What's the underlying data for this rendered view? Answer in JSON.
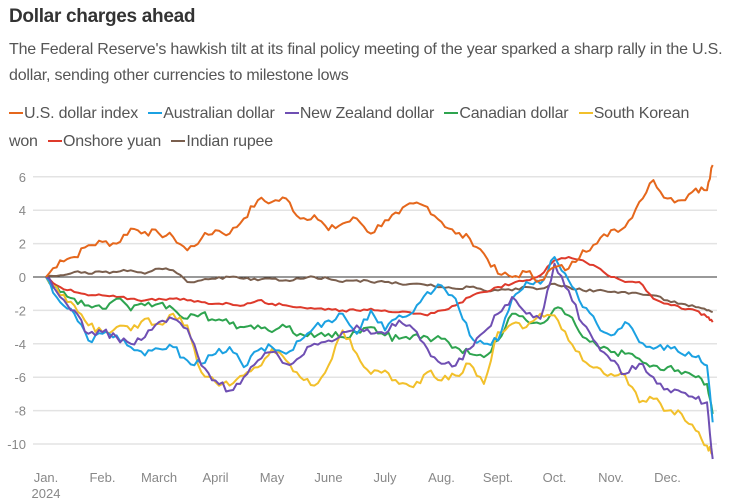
{
  "header": {
    "title": "Dollar charges ahead",
    "subtitle": "The Federal Reserve's hawkish tilt at its final policy meeting of the year sparked a sharp rally in the U.S. dollar, sending other currencies to milestone lows"
  },
  "chart_data": {
    "type": "line",
    "title": "Dollar charges ahead",
    "subtitle": "The Federal Reserve's hawkish tilt at its final policy meeting of the year sparked a sharp rally in the U.S. dollar, sending other currencies to milestone lows",
    "xlabel": "",
    "ylabel": "",
    "ylim": [
      -11,
      6.5
    ],
    "yticks": [
      6,
      4,
      2,
      0,
      -2,
      -4,
      -6,
      -8,
      -10
    ],
    "ytick_labels": [
      "6",
      "4",
      "2",
      "0",
      "-2",
      "-4",
      "-6",
      "-8",
      "-10"
    ],
    "xlim": [
      0,
      11.85
    ],
    "xticks": [
      0,
      1,
      2,
      3,
      4,
      5,
      6,
      7,
      8,
      9,
      10,
      11
    ],
    "xtick_labels": [
      "Jan.",
      "Feb.",
      "March",
      "April",
      "May",
      "June",
      "July",
      "Aug.",
      "Sept.",
      "Oct.",
      "Nov.",
      "Dec."
    ],
    "xtick_year": "2024",
    "grid": true,
    "legend_position": "top",
    "x": [
      0,
      0.25,
      0.5,
      0.75,
      1,
      1.25,
      1.5,
      1.75,
      2,
      2.25,
      2.5,
      2.75,
      3,
      3.25,
      3.5,
      3.75,
      4,
      4.25,
      4.5,
      4.75,
      5,
      5.25,
      5.5,
      5.75,
      6,
      6.25,
      6.5,
      6.75,
      7,
      7.25,
      7.5,
      7.75,
      8,
      8.25,
      8.5,
      8.75,
      9,
      9.25,
      9.5,
      9.75,
      10,
      10.25,
      10.5,
      10.75,
      11,
      11.25,
      11.5,
      11.7,
      11.8
    ],
    "series": [
      {
        "name": "U.S. dollar index",
        "color": "#e5671c",
        "values": [
          0,
          1.0,
          1.2,
          1.9,
          2.1,
          2.0,
          2.9,
          2.7,
          2.6,
          2.4,
          1.6,
          2.3,
          2.8,
          2.6,
          3.5,
          4.6,
          4.5,
          4.7,
          3.5,
          3.7,
          2.8,
          3.2,
          3.5,
          2.6,
          3.4,
          3.8,
          4.4,
          4.2,
          3.3,
          2.6,
          2.3,
          1.4,
          0.2,
          0.0,
          0.3,
          -0.2,
          0.6,
          0.5,
          1.6,
          2.0,
          2.8,
          3.0,
          4.5,
          5.8,
          4.7,
          4.6,
          5.3,
          5.2,
          6.7
        ]
      },
      {
        "name": "Australian dollar",
        "color": "#1ba1e2",
        "values": [
          0,
          -1.5,
          -2.2,
          -3.8,
          -3.4,
          -3.5,
          -4.2,
          -4.7,
          -4.3,
          -4.2,
          -5.0,
          -5.2,
          -4.6,
          -4.2,
          -5.4,
          -4.4,
          -4.2,
          -4.6,
          -3.8,
          -3.0,
          -2.6,
          -2.2,
          -3.4,
          -2.0,
          -3.2,
          -2.3,
          -2.1,
          -0.9,
          -0.5,
          -1.3,
          -3.5,
          -4.0,
          -3.8,
          -1.3,
          -0.3,
          -0.4,
          1.2,
          -0.2,
          -1.8,
          -2.8,
          -3.5,
          -2.7,
          -3.9,
          -4.3,
          -4.1,
          -4.6,
          -4.8,
          -5.3,
          -8.7
        ]
      },
      {
        "name": "New Zealand dollar",
        "color": "#6f4fb3",
        "values": [
          0,
          -1.2,
          -2.0,
          -3.4,
          -3.3,
          -3.6,
          -4.0,
          -3.6,
          -2.7,
          -2.5,
          -3.1,
          -5.3,
          -6.2,
          -6.8,
          -6.0,
          -5.0,
          -4.5,
          -5.2,
          -4.8,
          -4.0,
          -3.8,
          -3.3,
          -2.9,
          -3.4,
          -3.4,
          -2.6,
          -3.1,
          -4.3,
          -5.2,
          -5.3,
          -4.3,
          -3.3,
          -2.2,
          -1.2,
          -2.2,
          -2.5,
          0.8,
          -0.8,
          -2.8,
          -4.0,
          -5.0,
          -5.8,
          -5.2,
          -6.0,
          -6.7,
          -6.9,
          -7.3,
          -7.5,
          -10.9
        ]
      },
      {
        "name": "Canadian dollar",
        "color": "#2ea44f",
        "values": [
          0,
          -0.9,
          -1.3,
          -1.7,
          -1.9,
          -1.3,
          -2.0,
          -1.7,
          -1.6,
          -1.9,
          -2.5,
          -2.2,
          -2.6,
          -2.8,
          -3.0,
          -2.9,
          -3.3,
          -3.0,
          -3.4,
          -3.6,
          -3.4,
          -3.6,
          -3.3,
          -3.0,
          -3.5,
          -3.7,
          -3.5,
          -3.6,
          -3.7,
          -4.2,
          -4.6,
          -4.8,
          -3.8,
          -2.2,
          -2.6,
          -2.8,
          -1.9,
          -2.3,
          -3.6,
          -4.1,
          -4.5,
          -4.6,
          -4.9,
          -5.3,
          -5.4,
          -5.8,
          -6.0,
          -6.4,
          -8.2
        ]
      },
      {
        "name": "South Korean won",
        "color": "#f2c02b",
        "values": [
          0,
          -1.1,
          -1.7,
          -2.9,
          -3.3,
          -3.0,
          -3.2,
          -2.5,
          -2.8,
          -2.2,
          -2.9,
          -5.7,
          -6.3,
          -6.5,
          -5.9,
          -5.4,
          -4.3,
          -5.0,
          -6.0,
          -6.5,
          -5.3,
          -3.2,
          -4.6,
          -5.8,
          -5.6,
          -6.4,
          -6.6,
          -5.7,
          -6.2,
          -5.9,
          -5.2,
          -6.4,
          -3.3,
          -2.8,
          -3.0,
          -2.2,
          -2.3,
          -3.8,
          -5.0,
          -5.4,
          -5.8,
          -5.9,
          -7.5,
          -7.3,
          -8.0,
          -8.2,
          -9.2,
          -10.1,
          -10.6
        ]
      },
      {
        "name": "Onshore yuan",
        "color": "#de3a2b",
        "values": [
          0,
          -0.6,
          -0.9,
          -1.1,
          -1.1,
          -1.2,
          -1.3,
          -1.4,
          -1.3,
          -1.3,
          -1.4,
          -1.5,
          -1.6,
          -1.6,
          -1.7,
          -1.4,
          -1.6,
          -1.7,
          -1.8,
          -1.9,
          -1.9,
          -2.0,
          -2.0,
          -1.9,
          -2.0,
          -2.1,
          -2.2,
          -2.3,
          -2.0,
          -1.7,
          -1.2,
          -0.9,
          -0.6,
          -0.4,
          -0.2,
          0.1,
          1.0,
          1.2,
          1.0,
          0.6,
          0.0,
          -0.3,
          -0.3,
          -1.3,
          -1.6,
          -1.9,
          -2.0,
          -2.4,
          -2.7
        ]
      },
      {
        "name": "Indian rupee",
        "color": "#7a5f4e",
        "values": [
          0,
          0.1,
          0.3,
          0.2,
          0.3,
          0.3,
          0.4,
          0.2,
          0.5,
          0.4,
          -0.3,
          -0.2,
          -0.1,
          0.0,
          -0.1,
          -0.2,
          -0.1,
          -0.2,
          -0.1,
          0.0,
          -0.1,
          -0.3,
          -0.2,
          -0.3,
          -0.3,
          -0.4,
          -0.4,
          -0.5,
          -0.6,
          -0.7,
          -0.6,
          -0.8,
          -0.8,
          -0.8,
          -0.6,
          -0.7,
          -0.4,
          -0.6,
          -0.8,
          -0.8,
          -0.9,
          -0.9,
          -1.0,
          -1.1,
          -1.4,
          -1.6,
          -1.8,
          -2.0,
          -2.1
        ]
      }
    ]
  }
}
